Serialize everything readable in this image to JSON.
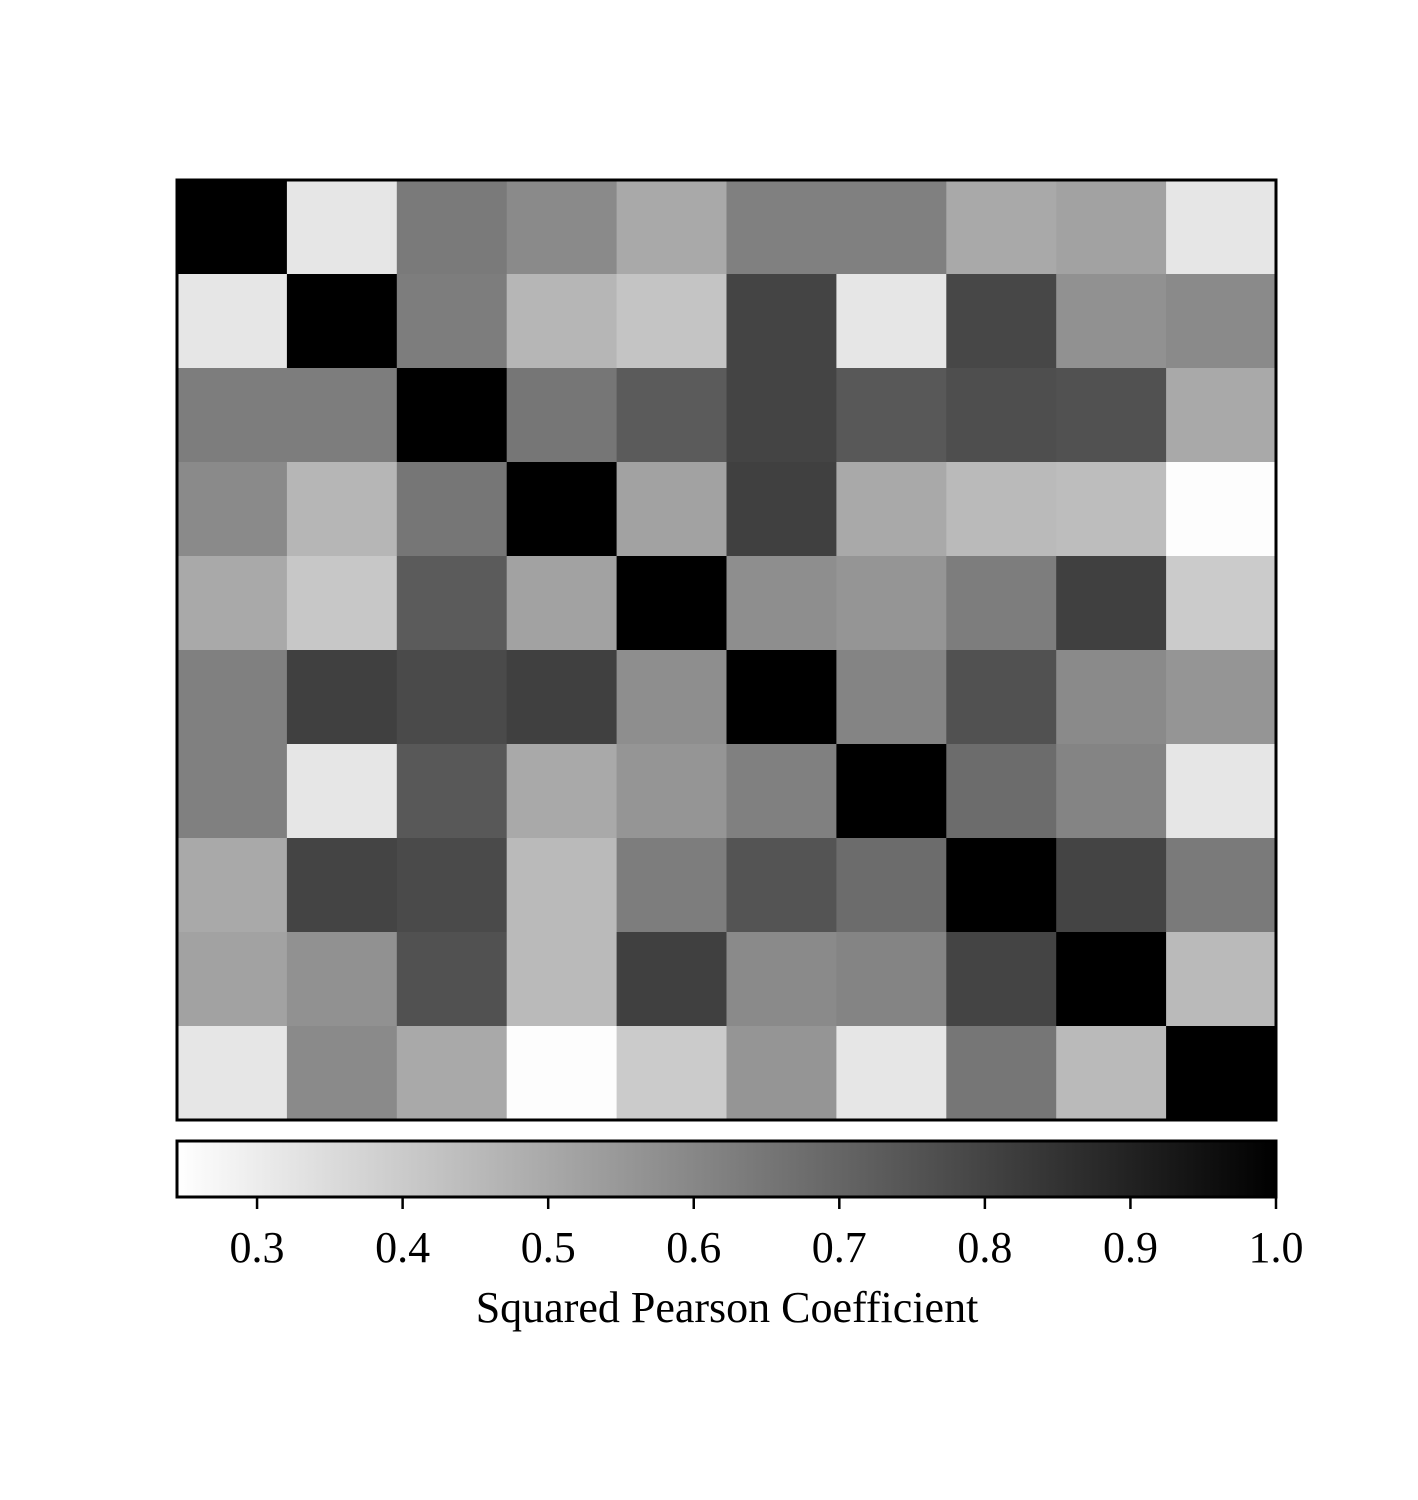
{
  "chart_data": {
    "type": "heatmap",
    "colormap": "grayscale (white = low, black = high)",
    "matrix": [
      [
        1.0,
        0.32,
        0.64,
        0.59,
        0.5,
        0.62,
        0.62,
        0.5,
        0.52,
        0.32
      ],
      [
        0.32,
        1.0,
        0.63,
        0.46,
        0.42,
        0.8,
        0.32,
        0.79,
        0.57,
        0.59
      ],
      [
        0.63,
        0.63,
        1.0,
        0.65,
        0.73,
        0.8,
        0.74,
        0.77,
        0.76,
        0.5
      ],
      [
        0.59,
        0.46,
        0.65,
        1.0,
        0.52,
        0.81,
        0.5,
        0.45,
        0.44,
        0.25
      ],
      [
        0.5,
        0.41,
        0.73,
        0.52,
        1.0,
        0.58,
        0.56,
        0.63,
        0.81,
        0.4
      ],
      [
        0.62,
        0.81,
        0.78,
        0.81,
        0.58,
        1.0,
        0.61,
        0.76,
        0.59,
        0.56
      ],
      [
        0.62,
        0.32,
        0.74,
        0.5,
        0.56,
        0.62,
        1.0,
        0.68,
        0.61,
        0.32
      ],
      [
        0.5,
        0.8,
        0.78,
        0.45,
        0.63,
        0.75,
        0.68,
        1.0,
        0.8,
        0.64
      ],
      [
        0.52,
        0.57,
        0.76,
        0.45,
        0.81,
        0.59,
        0.61,
        0.8,
        1.0,
        0.45
      ],
      [
        0.32,
        0.59,
        0.5,
        0.25,
        0.4,
        0.56,
        0.32,
        0.65,
        0.45,
        1.0
      ]
    ],
    "colorbar": {
      "range": [
        0.245,
        1.0
      ],
      "ticks": [
        "0.3",
        "0.4",
        "0.5",
        "0.6",
        "0.7",
        "0.8",
        "0.9",
        "1.0"
      ],
      "label": "Squared Pearson Coefficient"
    }
  }
}
